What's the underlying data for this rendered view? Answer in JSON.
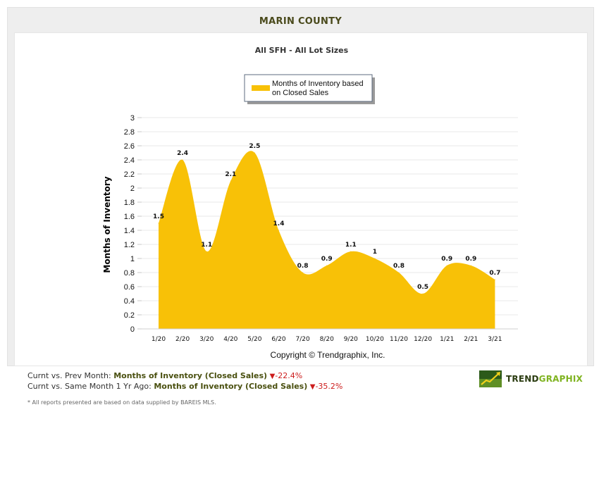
{
  "header": {
    "title": "MARIN COUNTY"
  },
  "chart_data": {
    "type": "area",
    "title": "All SFH - All Lot Sizes",
    "ylabel": "Months of Inventory",
    "xlabel": "",
    "ylim": [
      0,
      3
    ],
    "yticks": [
      0,
      0.2,
      0.4,
      0.6,
      0.8,
      1,
      1.2,
      1.4,
      1.6,
      1.8,
      2,
      2.2,
      2.4,
      2.6,
      2.8,
      3
    ],
    "grid": true,
    "legend": "top-center",
    "categories": [
      "1/20",
      "2/20",
      "3/20",
      "4/20",
      "5/20",
      "6/20",
      "7/20",
      "8/20",
      "9/20",
      "10/20",
      "11/20",
      "12/20",
      "1/21",
      "2/21",
      "3/21"
    ],
    "series": [
      {
        "name": "Months of Inventory based on Closed Sales",
        "name_lines": [
          "Months of Inventory based",
          "on Closed Sales"
        ],
        "color": "#f8c107",
        "values": [
          1.5,
          2.4,
          1.1,
          2.1,
          2.5,
          1.4,
          0.8,
          0.9,
          1.1,
          1,
          0.8,
          0.5,
          0.9,
          0.9,
          0.7
        ]
      }
    ],
    "annotation": "Copyright © Trendgraphix, Inc."
  },
  "summary": {
    "line1_prefix": "Curnt vs. Prev Month:",
    "line1_metric": "Months of Inventory (Closed Sales)",
    "line1_change": "-22.4%",
    "line2_prefix": "Curnt vs. Same Month 1 Yr Ago:",
    "line2_metric": "Months of Inventory (Closed Sales)",
    "line2_change": "-35.2%",
    "change_color": "#cc1c1c"
  },
  "footnote": "* All reports presented are based on data supplied by BAREIS MLS.",
  "logo": {
    "text_a": "TREND",
    "text_b": "GRAPHIX"
  }
}
